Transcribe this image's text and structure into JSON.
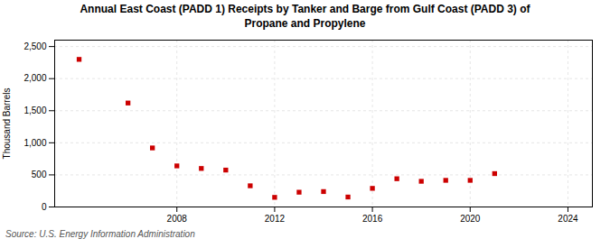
{
  "chart_data": {
    "type": "scatter",
    "title": "Annual East Coast (PADD 1) Receipts by Tanker and Barge from Gulf Coast (PADD 3) of\nPropane and Propylene",
    "ylabel": "Thousand Barrels",
    "source": "Source: U.S. Energy Information Administration",
    "x": [
      2004,
      2006,
      2007,
      2008,
      2009,
      2010,
      2011,
      2012,
      2013,
      2014,
      2015,
      2016,
      2017,
      2018,
      2019,
      2020,
      2021
    ],
    "values": [
      2300,
      1620,
      920,
      640,
      600,
      575,
      330,
      150,
      230,
      240,
      155,
      290,
      440,
      400,
      415,
      415,
      520
    ],
    "color": "#cc0000",
    "marker": "square",
    "xlim": [
      2003,
      2025
    ],
    "xticks": [
      2008,
      2012,
      2016,
      2020,
      2024
    ],
    "ylim": [
      0,
      2600
    ],
    "yticks": [
      0,
      500,
      {
        "value": 1000,
        "label": "1,000"
      },
      {
        "value": 1500,
        "label": "1,500"
      },
      {
        "value": 2000,
        "label": "2,000"
      },
      {
        "value": 2500,
        "label": "2,500"
      }
    ],
    "grid": true
  }
}
